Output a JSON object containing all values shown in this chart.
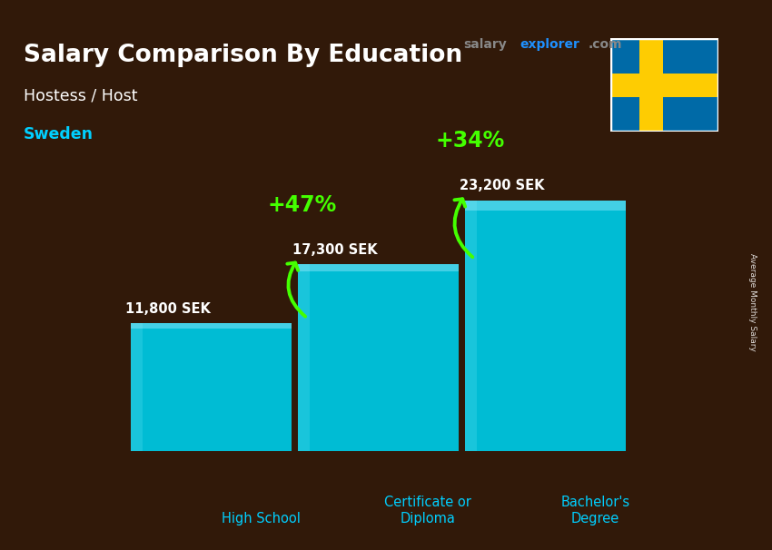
{
  "title_main": "Salary Comparison By Education",
  "title_sub1": "Hostess / Host",
  "title_sub2": "Sweden",
  "categories": [
    "High School",
    "Certificate or\nDiploma",
    "Bachelor's\nDegree"
  ],
  "values": [
    11800,
    17300,
    23200
  ],
  "value_labels": [
    "11,800 SEK",
    "17,300 SEK",
    "23,200 SEK"
  ],
  "pct_labels": [
    "+47%",
    "+34%"
  ],
  "bar_color_front": "#00bcd4",
  "bar_color_top": "#4dd9ec",
  "bar_color_side": "#0097a7",
  "text_color_white": "#ffffff",
  "text_color_cyan": "#00cfff",
  "text_color_green": "#7fff00",
  "arrow_color": "#44ff00",
  "site_salary_color": "#888888",
  "site_explorer_color": "#1e90ff",
  "site_com_color": "#888888",
  "ylabel_text": "Average Monthly Salary",
  "ylim": [
    0,
    28000
  ],
  "bar_width": 0.55,
  "bar_depth": 0.06,
  "x_positions": [
    0.18,
    0.5,
    0.82
  ],
  "flag_blue": "#006AA7",
  "flag_yellow": "#FECC02",
  "bg_color": "#3a2010"
}
